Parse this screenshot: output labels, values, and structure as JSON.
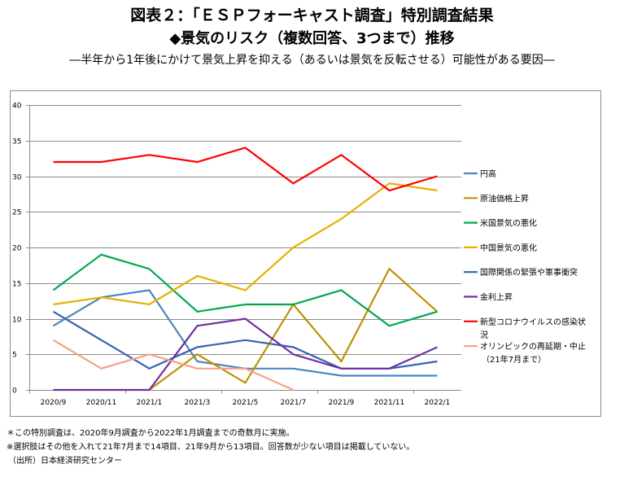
{
  "header": {
    "title_line1": "図表２：「ＥＳＰフォーキャスト調査」特別調査結果",
    "title_line2": "◆景気のリスク（複数回答、3つまで）推移",
    "subtitle": "―半年から1年後にかけて景気上昇を抑える（あるいは景気を反転させる）可能性がある要因―"
  },
  "chart_data": {
    "type": "line",
    "title": "景気のリスク（複数回答、3つまで）推移",
    "xlabel": "",
    "ylabel": "",
    "categories": [
      "2020/9",
      "2020/11",
      "2021/1",
      "2021/3",
      "2021/5",
      "2021/7",
      "2021/9",
      "2021/11",
      "2022/1"
    ],
    "ylim": [
      0,
      40
    ],
    "yticks": [
      0,
      5,
      10,
      15,
      20,
      25,
      30,
      35,
      40
    ],
    "grid": true,
    "legend_position": "right",
    "series": [
      {
        "name": "円高",
        "color": "#4a86c0",
        "values": [
          9,
          13,
          14,
          4,
          3,
          3,
          2,
          2,
          2
        ]
      },
      {
        "name": "原油価格上昇",
        "color": "#c09000",
        "values": [
          null,
          null,
          0,
          5,
          1,
          12,
          4,
          17,
          11
        ]
      },
      {
        "name": "米国景気の悪化",
        "color": "#00a850",
        "values": [
          14,
          19,
          17,
          11,
          12,
          12,
          14,
          9,
          11
        ]
      },
      {
        "name": "中国景気の悪化",
        "color": "#e8b000",
        "values": [
          12,
          13,
          12,
          16,
          14,
          20,
          24,
          29,
          28
        ]
      },
      {
        "name": "国際関係の緊張や軍事衝突",
        "color": "#3562b0",
        "values": [
          11,
          7,
          3,
          6,
          7,
          6,
          3,
          3,
          4
        ]
      },
      {
        "name": "金利上昇",
        "color": "#7030a0",
        "values": [
          0,
          0,
          0,
          9,
          10,
          5,
          3,
          3,
          6
        ]
      },
      {
        "name": "新型コロナウイルスの感染状況",
        "color": "#ff0000",
        "values": [
          32,
          32,
          33,
          32,
          34,
          29,
          33,
          28,
          30
        ]
      },
      {
        "name": "オリンピックの再延期・中止（21年7月まで）",
        "color": "#f4a384",
        "values": [
          7,
          3,
          5,
          3,
          3,
          0,
          null,
          null,
          null
        ]
      }
    ],
    "legend_lines": [
      [
        "円高"
      ],
      [
        "原油価格上昇"
      ],
      [
        "米国景気の悪化"
      ],
      [
        "中国景気の悪化"
      ],
      [
        "国際関係の緊張や軍事衝突"
      ],
      [
        "金利上昇"
      ],
      [
        "新型コロナウイルスの感染状",
        "況"
      ],
      [
        "オリンピックの再延期・中止",
        "（21年7月まで）"
      ]
    ]
  },
  "footnotes": {
    "note1": "＊この特別調査は、2020年9月調査から2022年1月調査までの奇数月に実施。",
    "note2": "※選択肢はその他を入れて21年7月まで14項目、21年9月から13項目。回答数が少ない項目は掲載していない。",
    "source": "（出所）日本経済研究センター"
  }
}
